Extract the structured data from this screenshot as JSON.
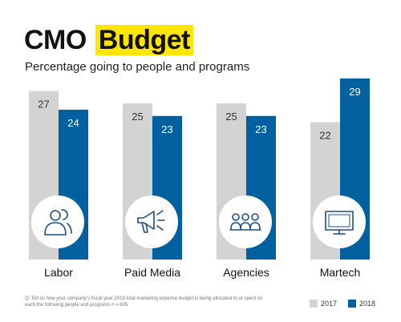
{
  "title_main": "CMO",
  "title_highlight": "Budget",
  "subtitle": "Percentage going to people and programs",
  "footnote": "Q: Tell us how your company's fiscal year 2019 total marketing expense budget is being allocated to or spent on each the following people and programs n = 605",
  "colors": {
    "2017": "#d3d3d3",
    "2018": "#0060a0",
    "highlight": "#ffe600",
    "icon": "#1b4e86"
  },
  "chart_data": {
    "type": "bar",
    "title": "",
    "xlabel": "",
    "ylabel": "",
    "ylim": [
      0,
      29
    ],
    "grid": false,
    "legend_position": "bottom-right",
    "categories": [
      "Labor",
      "Paid Media",
      "Agencies",
      "Martech"
    ],
    "icons": [
      "people-icon",
      "megaphone-icon",
      "group-icon",
      "monitor-icon"
    ],
    "series": [
      {
        "name": "2017",
        "color": "#d3d3d3",
        "values": [
          27,
          25,
          25,
          22
        ]
      },
      {
        "name": "2018",
        "color": "#0060a0",
        "values": [
          24,
          23,
          23,
          29
        ]
      }
    ]
  }
}
